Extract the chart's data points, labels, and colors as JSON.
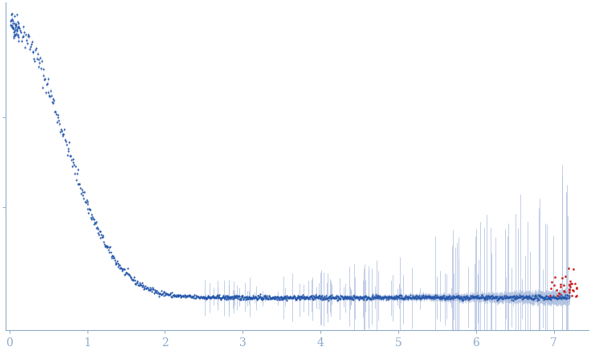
{
  "title": "",
  "xlabel": "",
  "ylabel": "",
  "xlim": [
    -0.05,
    7.45
  ],
  "x_ticks": [
    0,
    1,
    2,
    3,
    4,
    5,
    6,
    7
  ],
  "background_color": "#ffffff",
  "dot_color_blue": "#2255aa",
  "dot_color_red": "#cc2222",
  "error_color": "#aabbdd",
  "axis_color": "#8eaac8",
  "tick_color": "#8eaac8",
  "seed": 42
}
